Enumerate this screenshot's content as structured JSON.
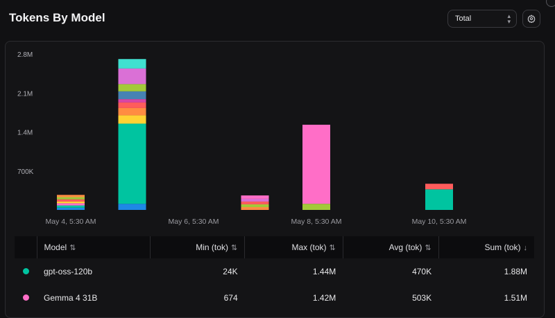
{
  "header": {
    "title": "Tokens By Model",
    "select_value": "Total"
  },
  "icons": [
    "chevron-updown-icon",
    "gear-icon",
    "sort-arrows-icon",
    "sort-down-icon"
  ],
  "colors": {
    "background": "#111113",
    "panel": "#141416",
    "gpt": "#00c4a0",
    "gemma": "#ff6ec7"
  },
  "chart_data": {
    "type": "bar",
    "stacked": true,
    "y_ticks": [
      "700K",
      "1.4M",
      "2.1M",
      "2.8M"
    ],
    "y_tick_values": [
      700000,
      1400000,
      2100000,
      2800000
    ],
    "ylim": [
      0,
      2800000
    ],
    "x_tick_labels": [
      "May 4, 5:30 AM",
      "May 6, 5:30 AM",
      "May 8, 5:30 AM",
      "May 10, 5:30 AM"
    ],
    "grid": false,
    "bars": [
      {
        "x": "May 4, 5:30 AM",
        "segments": [
          {
            "color": "#1e88e5",
            "value": 40000
          },
          {
            "color": "#00c4a0",
            "value": 40000
          },
          {
            "color": "#ff6ec7",
            "value": 40000
          },
          {
            "color": "#ffd234",
            "value": 30000
          },
          {
            "color": "#ff5c5c",
            "value": 40000
          },
          {
            "color": "#a3c93a",
            "value": 40000
          },
          {
            "color": "#ff8c42",
            "value": 40000
          }
        ]
      },
      {
        "x": "May 5, 5:30 AM",
        "segments": [
          {
            "color": "#1e88e5",
            "value": 110000
          },
          {
            "color": "#00c4a0",
            "value": 1440000
          },
          {
            "color": "#ffd234",
            "value": 150000
          },
          {
            "color": "#ff8c42",
            "value": 130000
          },
          {
            "color": "#ff5c5c",
            "value": 100000
          },
          {
            "color": "#d946a6",
            "value": 60000
          },
          {
            "color": "#4682b4",
            "value": 140000
          },
          {
            "color": "#a3c93a",
            "value": 130000
          },
          {
            "color": "#da70d6",
            "value": 280000
          },
          {
            "color": "#40e0d0",
            "value": 170000
          }
        ]
      },
      {
        "x": "May 7, 5:30 AM",
        "segments": [
          {
            "color": "#ff8c42",
            "value": 50000
          },
          {
            "color": "#a3c93a",
            "value": 50000
          },
          {
            "color": "#ff5c5c",
            "value": 50000
          },
          {
            "color": "#da70d6",
            "value": 50000
          },
          {
            "color": "#ff6ec7",
            "value": 60000
          }
        ]
      },
      {
        "x": "May 8, 5:30 AM",
        "segments": [
          {
            "color": "#a3c93a",
            "value": 110000
          },
          {
            "color": "#ff6ec7",
            "value": 1420000
          }
        ]
      },
      {
        "x": "May 10, 5:30 AM",
        "segments": [
          {
            "color": "#00c4a0",
            "value": 370000
          },
          {
            "color": "#ff5c5c",
            "value": 100000
          }
        ]
      }
    ]
  },
  "table": {
    "headers": {
      "model": "Model",
      "min": "Min (tok)",
      "max": "Max (tok)",
      "avg": "Avg (tok)",
      "sum": "Sum (tok)",
      "sort_both": "⇅",
      "sort_down": "↓"
    },
    "rows": [
      {
        "color": "#00c4a0",
        "model": "gpt-oss-120b",
        "min": "24K",
        "max": "1.44M",
        "avg": "470K",
        "sum": "1.88M"
      },
      {
        "color": "#ff6ec7",
        "model": "Gemma 4 31B",
        "min": "674",
        "max": "1.42M",
        "avg": "503K",
        "sum": "1.51M"
      }
    ]
  }
}
